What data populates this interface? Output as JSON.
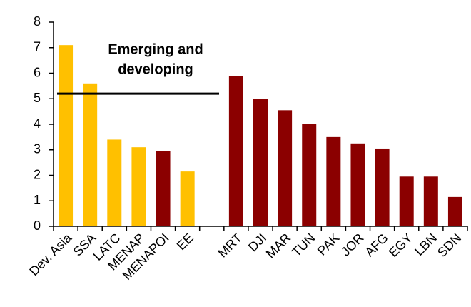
{
  "chart_data": {
    "type": "bar",
    "categories": [
      "Dev. Asia",
      "SSA",
      "LATC",
      "MENAP",
      "MENAPOI",
      "EE",
      null,
      "MRT",
      "DJI",
      "MAR",
      "TUN",
      "PAK",
      "JOR",
      "AFG",
      "EGY",
      "LBN",
      "SDN"
    ],
    "values": [
      7.1,
      5.6,
      3.4,
      3.1,
      2.95,
      2.15,
      null,
      5.9,
      5.0,
      4.55,
      4.0,
      3.5,
      3.25,
      3.05,
      1.95,
      1.95,
      1.15
    ],
    "colors": [
      "#ffc000",
      "#ffc000",
      "#ffc000",
      "#ffc000",
      "#8b0000",
      "#ffc000",
      null,
      "#8b0000",
      "#8b0000",
      "#8b0000",
      "#8b0000",
      "#8b0000",
      "#8b0000",
      "#8b0000",
      "#8b0000",
      "#8b0000",
      "#8b0000"
    ],
    "ylim": [
      0,
      8
    ],
    "yticks": [
      0,
      1,
      2,
      3,
      4,
      5,
      6,
      7,
      8
    ],
    "annotation": {
      "text": [
        "Emerging and",
        "developing"
      ],
      "y": 5.2
    }
  }
}
